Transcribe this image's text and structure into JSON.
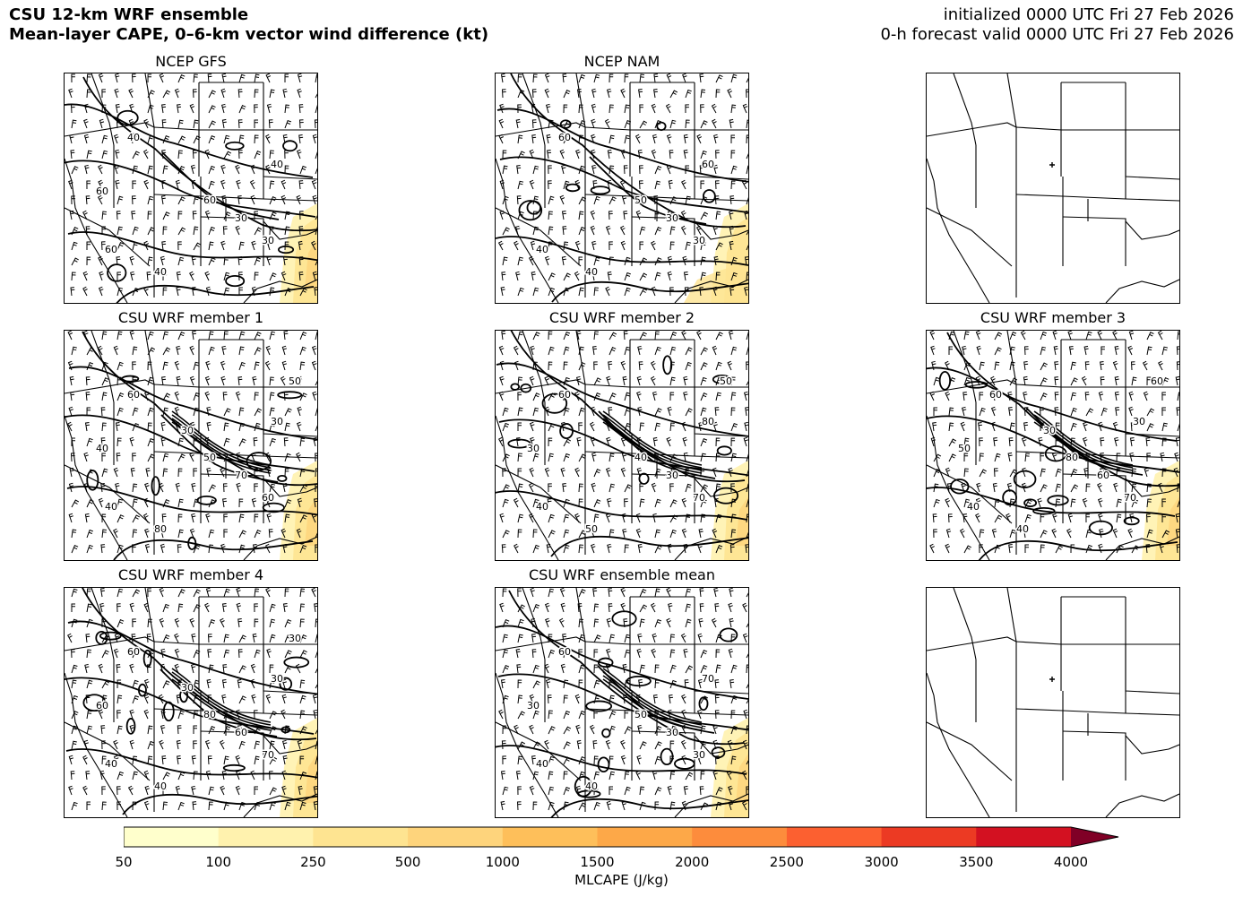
{
  "header": {
    "title_line1": "CSU 12-km WRF ensemble",
    "title_line2": "Mean-layer CAPE, 0–6-km vector wind difference (kt)",
    "init_line": "initialized 0000 UTC Fri 27 Feb 2026",
    "valid_line": "0-h forecast valid 0000 UTC Fri 27 Feb 2026"
  },
  "panels": [
    {
      "title": "NCEP GFS",
      "contours": [
        "40",
        "60",
        "30",
        "30",
        "40",
        "60",
        "40",
        "60"
      ]
    },
    {
      "title": "NCEP NAM",
      "contours": [
        "60",
        "40",
        "30",
        "30",
        "60",
        "50",
        "40"
      ]
    },
    {
      "title": "",
      "contours": []
    },
    {
      "title": "CSU WRF member 1",
      "contours": [
        "60",
        "40",
        "60",
        "70",
        "30",
        "50",
        "80",
        "40",
        "50",
        "30"
      ]
    },
    {
      "title": "CSU WRF member 2",
      "contours": [
        "60",
        "40",
        "70",
        "30",
        "80",
        "40",
        "50",
        "30",
        "50"
      ]
    },
    {
      "title": "CSU WRF member 3",
      "contours": [
        "60",
        "40",
        "70",
        "60",
        "30",
        "80",
        "40",
        "50",
        "60",
        "30"
      ]
    },
    {
      "title": "CSU WRF member 4",
      "contours": [
        "60",
        "40",
        "70",
        "60",
        "30",
        "80",
        "40",
        "60",
        "30",
        "30"
      ]
    },
    {
      "title": "CSU WRF ensemble mean",
      "contours": [
        "60",
        "40",
        "30",
        "30",
        "70",
        "50",
        "40",
        "30"
      ]
    },
    {
      "title": "",
      "contours": []
    }
  ],
  "colorbar": {
    "label": "MLCAPE (J/kg)",
    "ticks": [
      "50",
      "100",
      "250",
      "500",
      "1000",
      "1500",
      "2000",
      "2500",
      "3000",
      "3500",
      "4000"
    ],
    "colors": [
      "#ffffcc",
      "#fff2ae",
      "#fee491",
      "#fed47c",
      "#febf5a",
      "#fda848",
      "#fd8c3c",
      "#fc6030",
      "#ec3a23",
      "#d31121",
      "#b10026",
      "#800026"
    ]
  }
}
